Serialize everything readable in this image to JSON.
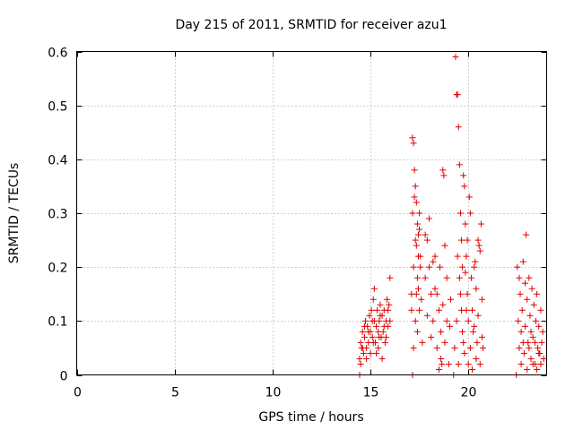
{
  "chart_data": {
    "type": "scatter",
    "title": "Day 215 of 2011, SRMTID for receiver azu1",
    "xlabel": "GPS time / hours",
    "ylabel": "SRMTID / TECUs",
    "xlim": [
      0,
      24
    ],
    "ylim": [
      0,
      0.6
    ],
    "xticks": [
      "0",
      "5",
      "10",
      "15",
      "20"
    ],
    "xtick_values": [
      0,
      5,
      10,
      15,
      20
    ],
    "yticks": [
      "0",
      "0.1",
      "0.2",
      "0.3",
      "0.4",
      "0.5",
      "0.6"
    ],
    "ytick_values": [
      0,
      0.1,
      0.2,
      0.3,
      0.4,
      0.5,
      0.6
    ],
    "grid": true,
    "marker": "plus",
    "color": "#e00000",
    "series": [
      {
        "points": [
          [
            14.45,
            0.03
          ],
          [
            14.5,
            0.06
          ],
          [
            14.55,
            0.05
          ],
          [
            14.6,
            0.08
          ],
          [
            14.65,
            0.04
          ],
          [
            14.7,
            0.07
          ],
          [
            14.75,
            0.1
          ],
          [
            14.8,
            0.05
          ],
          [
            14.85,
            0.09
          ],
          [
            14.9,
            0.06
          ],
          [
            14.95,
            0.11
          ],
          [
            15.0,
            0.08
          ],
          [
            15.05,
            0.12
          ],
          [
            15.1,
            0.07
          ],
          [
            15.15,
            0.14
          ],
          [
            15.2,
            0.1
          ],
          [
            15.25,
            0.06
          ],
          [
            15.3,
            0.09
          ],
          [
            15.35,
            0.12
          ],
          [
            15.4,
            0.05
          ],
          [
            15.45,
            0.1
          ],
          [
            15.5,
            0.13
          ],
          [
            15.55,
            0.07
          ],
          [
            15.6,
            0.11
          ],
          [
            15.65,
            0.08
          ],
          [
            15.7,
            0.12
          ],
          [
            15.75,
            0.06
          ],
          [
            15.8,
            0.1
          ],
          [
            15.85,
            0.14
          ],
          [
            15.9,
            0.09
          ],
          [
            15.95,
            0.13
          ],
          [
            16.0,
            0.18
          ],
          [
            14.5,
            0.02
          ],
          [
            14.6,
            0.05
          ],
          [
            14.7,
            0.09
          ],
          [
            14.8,
            0.03
          ],
          [
            14.9,
            0.08
          ],
          [
            15.0,
            0.04
          ],
          [
            15.1,
            0.1
          ],
          [
            15.2,
            0.16
          ],
          [
            15.3,
            0.04
          ],
          [
            15.4,
            0.08
          ],
          [
            15.5,
            0.11
          ],
          [
            15.6,
            0.03
          ],
          [
            15.7,
            0.09
          ],
          [
            15.8,
            0.07
          ],
          [
            15.9,
            0.12
          ],
          [
            16.0,
            0.1
          ],
          [
            15.15,
            0.06
          ],
          [
            15.45,
            0.07
          ],
          [
            17.1,
            0.15
          ],
          [
            17.15,
            0.44
          ],
          [
            17.2,
            0.43
          ],
          [
            17.25,
            0.38
          ],
          [
            17.3,
            0.35
          ],
          [
            17.35,
            0.32
          ],
          [
            17.4,
            0.28
          ],
          [
            17.45,
            0.26
          ],
          [
            17.5,
            0.3
          ],
          [
            17.55,
            0.22
          ],
          [
            17.2,
            0.2
          ],
          [
            17.3,
            0.25
          ],
          [
            17.4,
            0.18
          ],
          [
            17.5,
            0.12
          ],
          [
            17.35,
            0.24
          ],
          [
            17.45,
            0.16
          ],
          [
            17.25,
            0.33
          ],
          [
            17.15,
            0.3
          ],
          [
            17.6,
            0.14
          ],
          [
            17.4,
            0.08
          ],
          [
            17.3,
            0.1
          ],
          [
            17.55,
            0.2
          ],
          [
            17.2,
            0.05
          ],
          [
            17.65,
            0.06
          ],
          [
            17.45,
            0.22
          ],
          [
            17.1,
            0.12
          ],
          [
            17.5,
            0.27
          ],
          [
            17.35,
            0.15
          ],
          [
            17.8,
            0.18
          ],
          [
            17.9,
            0.25
          ],
          [
            18.0,
            0.2
          ],
          [
            18.1,
            0.15
          ],
          [
            18.2,
            0.1
          ],
          [
            18.3,
            0.22
          ],
          [
            18.4,
            0.05
          ],
          [
            18.5,
            0.12
          ],
          [
            18.6,
            0.08
          ],
          [
            18.7,
            0.38
          ],
          [
            18.75,
            0.37
          ],
          [
            18.8,
            0.24
          ],
          [
            18.9,
            0.1
          ],
          [
            19.0,
            0.02
          ],
          [
            18.5,
            0.01
          ],
          [
            18.6,
            0.03
          ],
          [
            18.8,
            0.06
          ],
          [
            19.1,
            0.14
          ],
          [
            18.3,
            0.16
          ],
          [
            18.1,
            0.07
          ],
          [
            17.9,
            0.11
          ],
          [
            18.0,
            0.29
          ],
          [
            17.8,
            0.26
          ],
          [
            18.2,
            0.21
          ],
          [
            18.4,
            0.15
          ],
          [
            18.7,
            0.13
          ],
          [
            18.9,
            0.18
          ],
          [
            19.05,
            0.09
          ],
          [
            18.55,
            0.2
          ],
          [
            18.65,
            0.02
          ],
          [
            19.3,
            0.05
          ],
          [
            19.35,
            0.59
          ],
          [
            19.4,
            0.52
          ],
          [
            19.45,
            0.52
          ],
          [
            19.5,
            0.46
          ],
          [
            19.55,
            0.39
          ],
          [
            19.6,
            0.3
          ],
          [
            19.65,
            0.25
          ],
          [
            19.7,
            0.2
          ],
          [
            19.75,
            0.37
          ],
          [
            19.8,
            0.35
          ],
          [
            19.85,
            0.28
          ],
          [
            19.9,
            0.22
          ],
          [
            19.95,
            0.15
          ],
          [
            20.0,
            0.1
          ],
          [
            20.05,
            0.33
          ],
          [
            20.1,
            0.3
          ],
          [
            20.15,
            0.18
          ],
          [
            20.2,
            0.12
          ],
          [
            20.25,
            0.08
          ],
          [
            20.3,
            0.2
          ],
          [
            20.35,
            0.21
          ],
          [
            20.4,
            0.16
          ],
          [
            20.45,
            0.06
          ],
          [
            20.5,
            0.25
          ],
          [
            20.55,
            0.24
          ],
          [
            20.6,
            0.23
          ],
          [
            20.65,
            0.28
          ],
          [
            20.7,
            0.14
          ],
          [
            20.75,
            0.05
          ],
          [
            19.4,
            0.1
          ],
          [
            19.5,
            0.02
          ],
          [
            19.6,
            0.15
          ],
          [
            19.7,
            0.08
          ],
          [
            19.8,
            0.04
          ],
          [
            19.9,
            0.12
          ],
          [
            20.0,
            0.02
          ],
          [
            20.1,
            0.05
          ],
          [
            20.2,
            0.01
          ],
          [
            20.3,
            0.09
          ],
          [
            20.4,
            0.03
          ],
          [
            20.5,
            0.11
          ],
          [
            20.6,
            0.02
          ],
          [
            20.7,
            0.07
          ],
          [
            19.45,
            0.22
          ],
          [
            19.55,
            0.18
          ],
          [
            19.65,
            0.12
          ],
          [
            19.75,
            0.06
          ],
          [
            19.85,
            0.19
          ],
          [
            19.95,
            0.25
          ],
          [
            22.5,
            0.2
          ],
          [
            22.55,
            0.1
          ],
          [
            22.6,
            0.05
          ],
          [
            22.65,
            0.15
          ],
          [
            22.7,
            0.08
          ],
          [
            22.75,
            0.12
          ],
          [
            22.8,
            0.21
          ],
          [
            22.85,
            0.04
          ],
          [
            22.9,
            0.09
          ],
          [
            22.95,
            0.26
          ],
          [
            23.0,
            0.14
          ],
          [
            23.05,
            0.06
          ],
          [
            23.1,
            0.18
          ],
          [
            23.15,
            0.11
          ],
          [
            23.2,
            0.03
          ],
          [
            23.25,
            0.16
          ],
          [
            23.3,
            0.07
          ],
          [
            23.35,
            0.13
          ],
          [
            23.4,
            0.02
          ],
          [
            23.45,
            0.1
          ],
          [
            23.5,
            0.15
          ],
          [
            23.55,
            0.05
          ],
          [
            23.6,
            0.09
          ],
          [
            23.65,
            0.04
          ],
          [
            23.7,
            0.12
          ],
          [
            23.75,
            0.06
          ],
          [
            23.8,
            0.08
          ],
          [
            23.85,
            0.03
          ],
          [
            22.6,
            0.18
          ],
          [
            22.7,
            0.02
          ],
          [
            22.8,
            0.06
          ],
          [
            22.9,
            0.17
          ],
          [
            23.0,
            0.01
          ],
          [
            23.1,
            0.05
          ],
          [
            23.2,
            0.08
          ],
          [
            23.3,
            0.02
          ],
          [
            23.4,
            0.06
          ],
          [
            23.5,
            0.01
          ],
          [
            23.6,
            0.04
          ],
          [
            23.7,
            0.02
          ],
          [
            14.45,
            0.0
          ],
          [
            17.15,
            0.0
          ],
          [
            19.25,
            0.0
          ],
          [
            22.45,
            0.0
          ]
        ]
      }
    ]
  }
}
